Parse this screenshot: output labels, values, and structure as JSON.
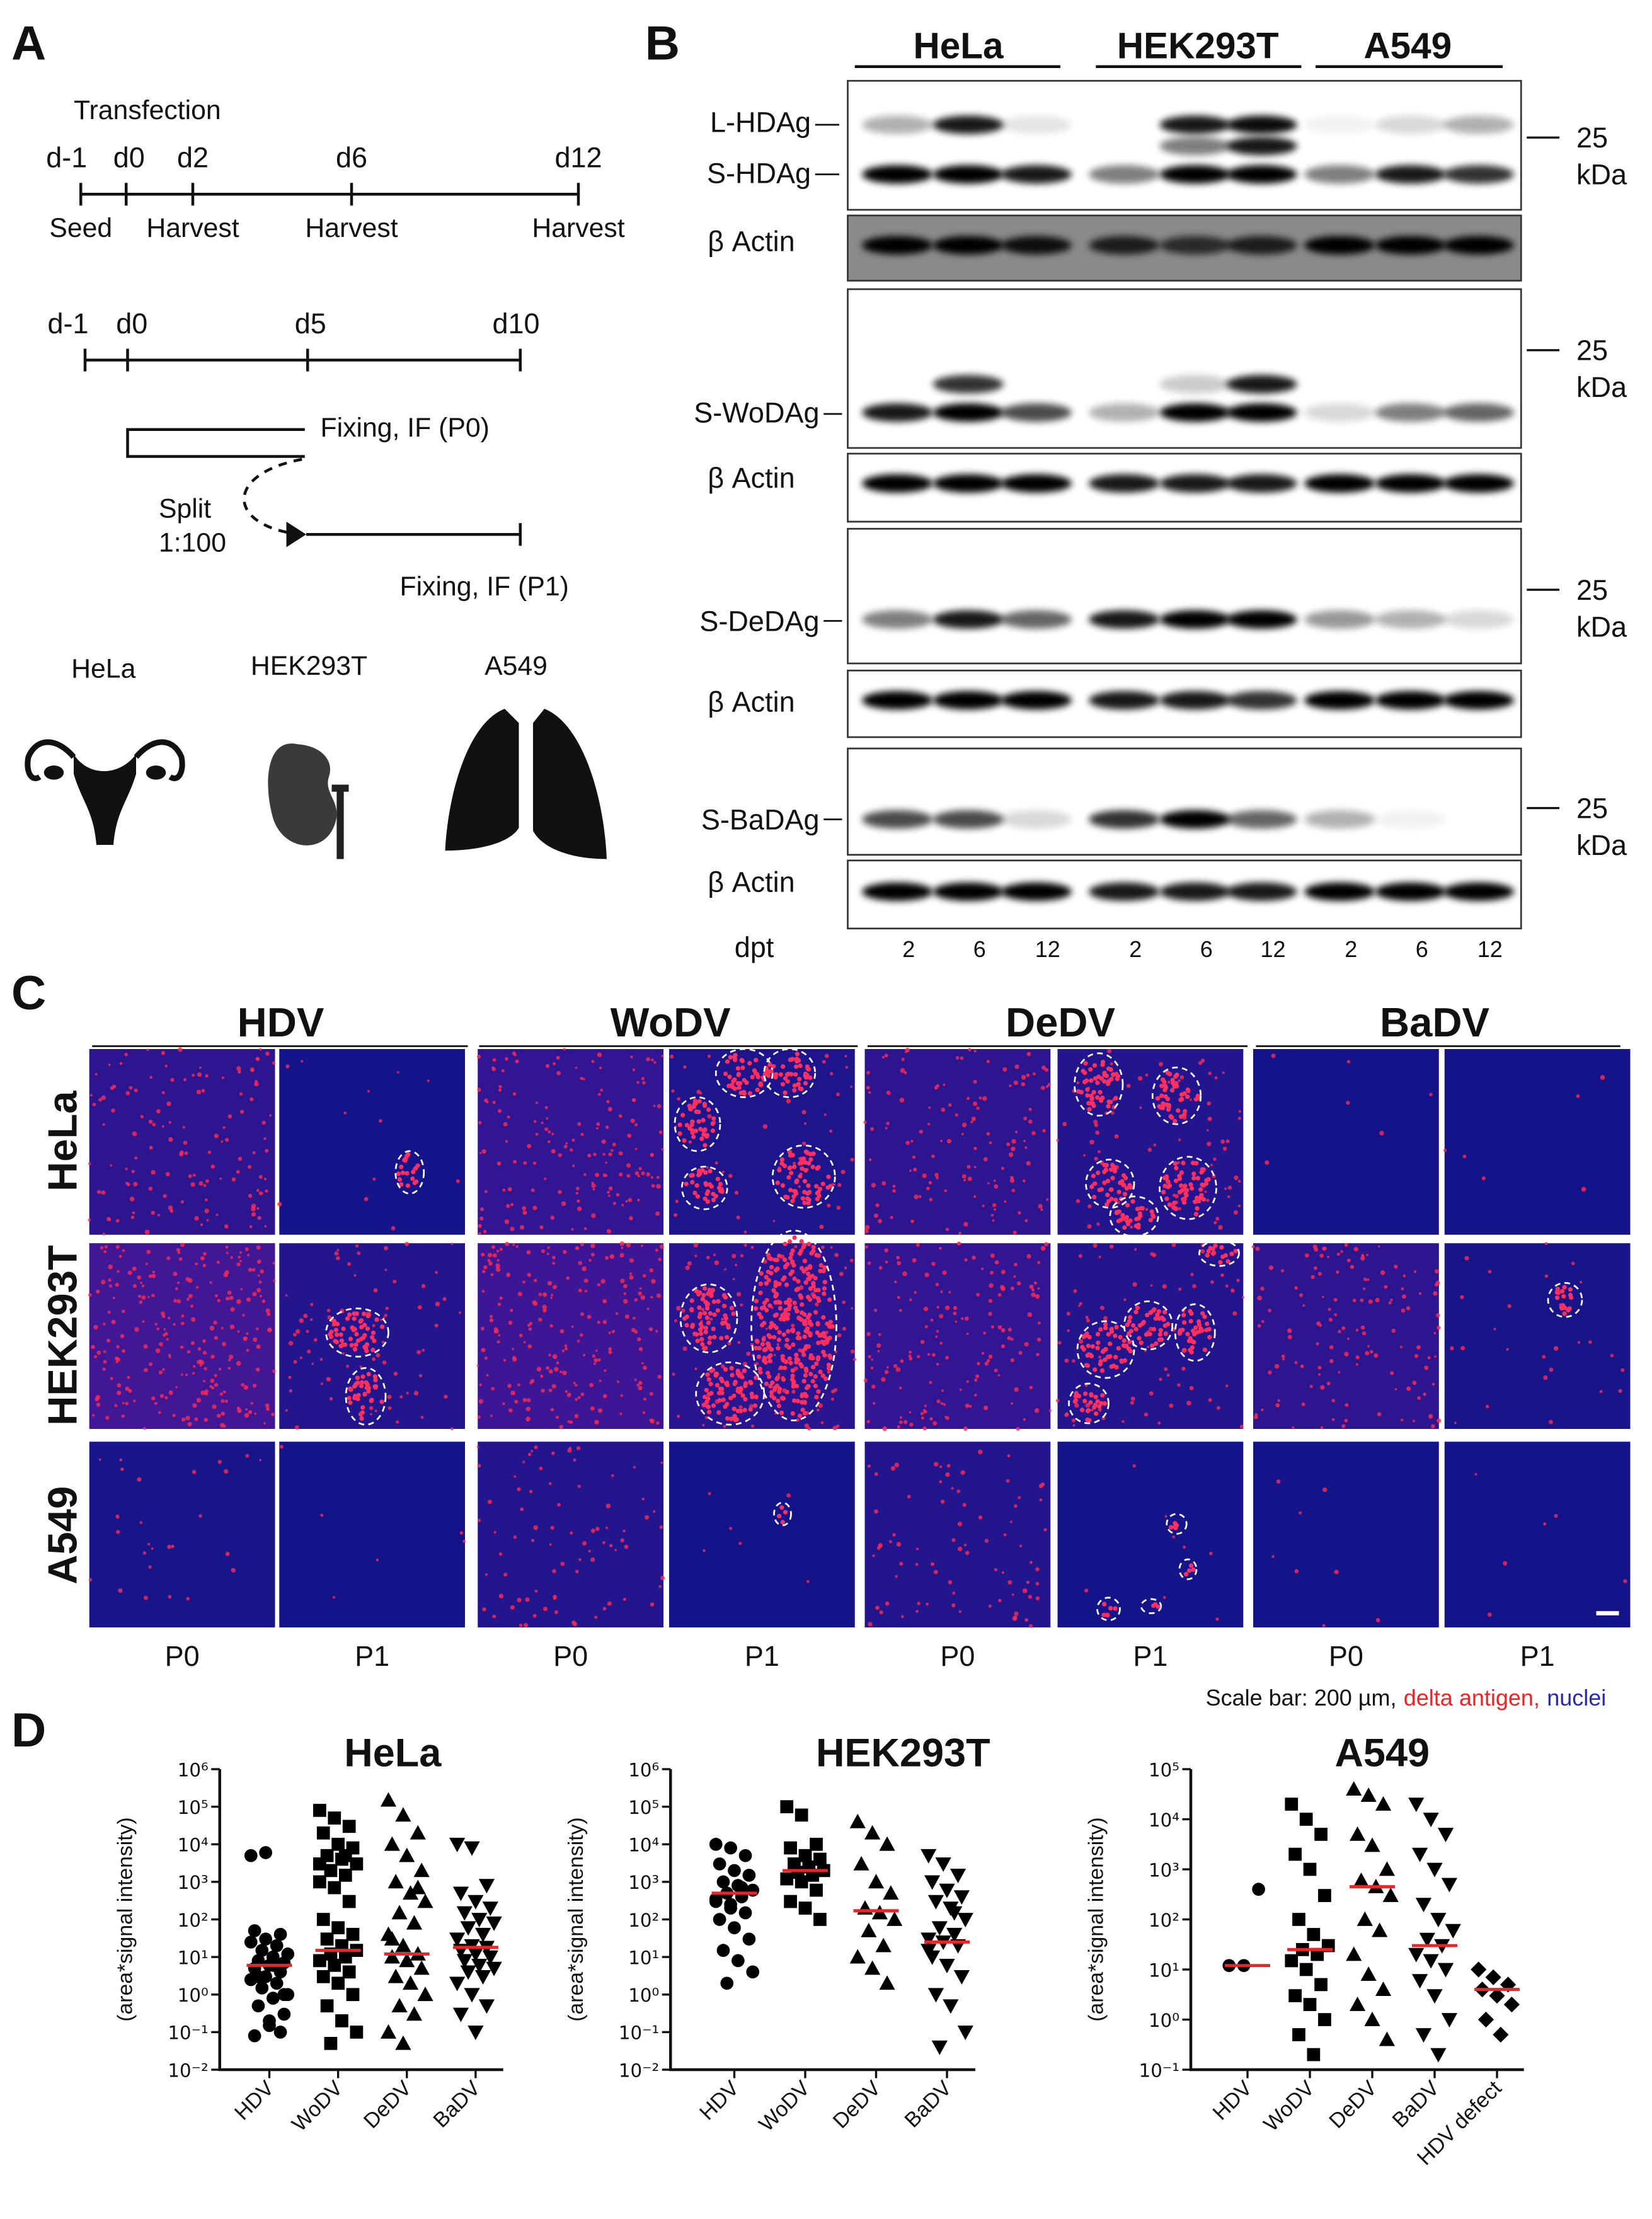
{
  "panel_a": {
    "label": "A",
    "transfection": "Transfection",
    "timeline1": {
      "days": [
        "d-1",
        "d0",
        "d2",
        "d6",
        "d12"
      ],
      "events": [
        "Seed",
        "Harvest",
        "Harvest",
        "Harvest"
      ]
    },
    "timeline2": {
      "days": [
        "d-1",
        "d0",
        "d5",
        "d10"
      ],
      "fix_p0": "Fixing, IF (P0)",
      "split": [
        "Split",
        "1:100"
      ],
      "fix_p1": "Fixing, IF (P1)"
    },
    "cells": [
      "HeLa",
      "HEK293T",
      "A549"
    ]
  },
  "panel_b": {
    "label": "B",
    "cells": [
      "HeLa",
      "HEK293T",
      "A549"
    ],
    "antigens": [
      "L-HDAg",
      "S-HDAg",
      "S-WoDAg",
      "S-DeDAg",
      "S-BaDAg"
    ],
    "loading": "β Actin",
    "marker": 25,
    "marker_unit": "kDa",
    "dpt": "dpt",
    "lanes": [
      2,
      6,
      12,
      2,
      6,
      12,
      2,
      6,
      12
    ]
  },
  "panel_c": {
    "label": "C",
    "viruses": [
      "HDV",
      "WoDV",
      "DeDV",
      "BaDV"
    ],
    "cells": [
      "HeLa",
      "HEK293T",
      "A549"
    ],
    "passages": [
      "P0",
      "P1"
    ],
    "scale_bar": [
      "Scale bar: 200 µm,",
      "delta antigen,",
      "nuclei"
    ]
  },
  "panel_d": {
    "label": "D"
  },
  "chart_data": [
    {
      "type": "scatter",
      "title": "HeLa",
      "y_label": "(area*signal intensity)",
      "categories": [
        "HDV",
        "WoDV",
        "DeDV",
        "BaDV"
      ],
      "markers": [
        "circle",
        "square",
        "triangle",
        "triangle-down"
      ],
      "color": "#000000",
      "median_color": "#e8262a",
      "log_y": true,
      "ylim": [
        0.01,
        1000000
      ],
      "yticks": [
        {
          "value": 0.01,
          "label": "10⁻²"
        },
        {
          "value": 0.1,
          "label": "10⁻¹"
        },
        {
          "value": 1,
          "label": "10⁰"
        },
        {
          "value": 10,
          "label": "10¹"
        },
        {
          "value": 100,
          "label": "10²"
        },
        {
          "value": 1000,
          "label": "10³"
        },
        {
          "value": 10000,
          "label": "10⁴"
        },
        {
          "value": 100000,
          "label": "10⁵"
        },
        {
          "value": 1000000,
          "label": "10⁶"
        }
      ],
      "groups": [
        [
          5000,
          6000,
          0.1,
          0.08,
          0.15,
          0.3,
          0.5,
          0.8,
          1,
          1.5,
          2,
          2.5,
          3,
          4,
          5,
          6,
          7,
          8,
          10,
          12,
          15,
          20,
          25,
          30,
          40,
          50,
          0.2,
          1,
          3,
          6
        ],
        [
          80000,
          50000,
          30000,
          20000,
          10000,
          8000,
          5000,
          4000,
          3000,
          2000,
          1500,
          1000,
          700,
          300,
          100,
          60,
          40,
          30,
          20,
          15,
          12,
          10,
          8,
          6,
          4,
          3,
          2,
          1,
          0.5,
          0.2,
          0.1,
          0.05,
          5000,
          3000
        ],
        [
          150000,
          60000,
          20000,
          10000,
          5000,
          2000,
          1000,
          500,
          300,
          150,
          80,
          40,
          20,
          12,
          10,
          8,
          5,
          3,
          2,
          1,
          0.5,
          0.3,
          0.1,
          0.05,
          700,
          30
        ],
        [
          10000,
          8000,
          800,
          500,
          300,
          200,
          150,
          100,
          80,
          60,
          40,
          30,
          20,
          18,
          15,
          12,
          10,
          8,
          6,
          5,
          4,
          3,
          2,
          1,
          0.5,
          0.3,
          0.1
        ]
      ],
      "medians": [
        6,
        15,
        12,
        18
      ]
    },
    {
      "type": "scatter",
      "title": "HEK293T",
      "y_label": "(area*signal intensity)",
      "categories": [
        "HDV",
        "WoDV",
        "DeDV",
        "BaDV"
      ],
      "markers": [
        "circle",
        "square",
        "triangle",
        "triangle-down"
      ],
      "color": "#000000",
      "median_color": "#e8262a",
      "log_y": true,
      "ylim": [
        0.01,
        1000000
      ],
      "yticks": [
        {
          "value": 0.01,
          "label": "10⁻²"
        },
        {
          "value": 0.1,
          "label": "10⁻¹"
        },
        {
          "value": 1,
          "label": "10⁰"
        },
        {
          "value": 10,
          "label": "10¹"
        },
        {
          "value": 100,
          "label": "10²"
        },
        {
          "value": 1000,
          "label": "10³"
        },
        {
          "value": 10000,
          "label": "10⁴"
        },
        {
          "value": 100000,
          "label": "10⁵"
        },
        {
          "value": 1000000,
          "label": "10⁶"
        }
      ],
      "groups": [
        [
          10000,
          8000,
          5000,
          3000,
          2000,
          1500,
          1000,
          800,
          600,
          500,
          400,
          300,
          200,
          150,
          100,
          60,
          30,
          15,
          8,
          4,
          2,
          700,
          350,
          250
        ],
        [
          100000,
          60000,
          10000,
          8000,
          5000,
          4000,
          3000,
          2500,
          2000,
          1800,
          1500,
          1200,
          1000,
          600,
          300,
          200,
          100
        ],
        [
          40000,
          20000,
          10000,
          3000,
          1000,
          500,
          200,
          150,
          100,
          50,
          20,
          10,
          5,
          2
        ],
        [
          5000,
          3000,
          1500,
          1000,
          600,
          400,
          300,
          200,
          100,
          60,
          40,
          30,
          25,
          20,
          10,
          6,
          3,
          1,
          0.5,
          0.1,
          0.04,
          150,
          15
        ]
      ],
      "medians": [
        500,
        2000,
        170,
        25
      ]
    },
    {
      "type": "scatter",
      "title": "A549",
      "y_label": "(area*signal intensity)",
      "categories": [
        "HDV",
        "WoDV",
        "DeDV",
        "BaDV",
        "HDV defect"
      ],
      "markers": [
        "circle",
        "square",
        "triangle",
        "triangle-down",
        "diamond"
      ],
      "color": "#000000",
      "median_color": "#e8262a",
      "log_y": true,
      "ylim": [
        0.1,
        100000
      ],
      "yticks": [
        {
          "value": 0.1,
          "label": "10⁻¹"
        },
        {
          "value": 1,
          "label": "10⁰"
        },
        {
          "value": 10,
          "label": "10¹"
        },
        {
          "value": 100,
          "label": "10²"
        },
        {
          "value": 1000,
          "label": "10³"
        },
        {
          "value": 10000,
          "label": "10⁴"
        },
        {
          "value": 100000,
          "label": "10⁵"
        }
      ],
      "groups": [
        [
          12,
          12,
          400
        ],
        [
          20000,
          10000,
          5000,
          2000,
          1000,
          300,
          100,
          50,
          30,
          25,
          20,
          15,
          10,
          5,
          3,
          2,
          1,
          0.5,
          0.2
        ],
        [
          40000,
          30000,
          20000,
          5000,
          3000,
          1000,
          600,
          450,
          300,
          100,
          60,
          20,
          8,
          4,
          2,
          1,
          0.4
        ],
        [
          20000,
          10000,
          5000,
          2000,
          1000,
          500,
          200,
          100,
          60,
          40,
          30,
          20,
          15,
          10,
          6,
          3,
          1,
          0.5,
          0.2
        ],
        [
          10,
          7,
          5,
          4,
          3,
          2,
          1,
          0.5
        ]
      ],
      "medians": [
        12,
        25,
        450,
        30,
        4
      ]
    }
  ]
}
